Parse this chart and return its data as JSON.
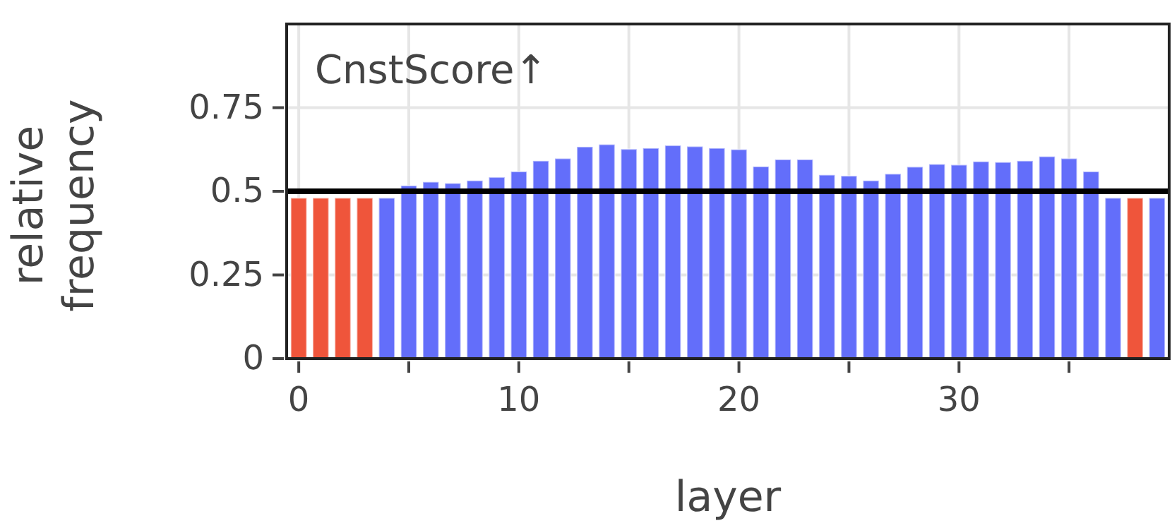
{
  "chart_data": {
    "type": "bar",
    "title": "CnstScore↑",
    "xlabel": "layer",
    "ylabel": "relative\nfrequency",
    "x": [
      0,
      1,
      2,
      3,
      4,
      5,
      6,
      7,
      8,
      9,
      10,
      11,
      12,
      13,
      14,
      15,
      16,
      17,
      18,
      19,
      20,
      21,
      22,
      23,
      24,
      25,
      26,
      27,
      28,
      29,
      30,
      31,
      32,
      33,
      34,
      35,
      36,
      37,
      38,
      39
    ],
    "values": [
      0.48,
      0.48,
      0.48,
      0.48,
      0.48,
      0.517,
      0.528,
      0.524,
      0.532,
      0.542,
      0.559,
      0.591,
      0.598,
      0.633,
      0.64,
      0.626,
      0.629,
      0.637,
      0.634,
      0.629,
      0.625,
      0.574,
      0.595,
      0.595,
      0.549,
      0.546,
      0.532,
      0.552,
      0.573,
      0.581,
      0.579,
      0.589,
      0.587,
      0.591,
      0.604,
      0.598,
      0.559,
      0.48,
      0.48,
      0.48
    ],
    "colors": [
      "#ef553b",
      "#ef553b",
      "#ef553b",
      "#ef553b",
      "#636efa",
      "#636efa",
      "#636efa",
      "#636efa",
      "#636efa",
      "#636efa",
      "#636efa",
      "#636efa",
      "#636efa",
      "#636efa",
      "#636efa",
      "#636efa",
      "#636efa",
      "#636efa",
      "#636efa",
      "#636efa",
      "#636efa",
      "#636efa",
      "#636efa",
      "#636efa",
      "#636efa",
      "#636efa",
      "#636efa",
      "#636efa",
      "#636efa",
      "#636efa",
      "#636efa",
      "#636efa",
      "#636efa",
      "#636efa",
      "#636efa",
      "#636efa",
      "#636efa",
      "#636efa",
      "#ef553b",
      "#636efa"
    ],
    "xlim": [
      -0.55,
      39.55
    ],
    "ylim": [
      0,
      1
    ],
    "xticks": [
      0,
      {
        "value": 5,
        "label": null
      },
      10,
      {
        "value": 15,
        "label": null
      },
      20,
      {
        "value": 25,
        "label": null
      },
      30,
      {
        "value": 35,
        "label": null
      }
    ],
    "yticks": [
      0,
      0.25,
      0.5,
      0.75
    ],
    "grid": true,
    "ref_lines": [
      {
        "axis": "y",
        "value": 0.5,
        "color": "#000000"
      }
    ]
  }
}
